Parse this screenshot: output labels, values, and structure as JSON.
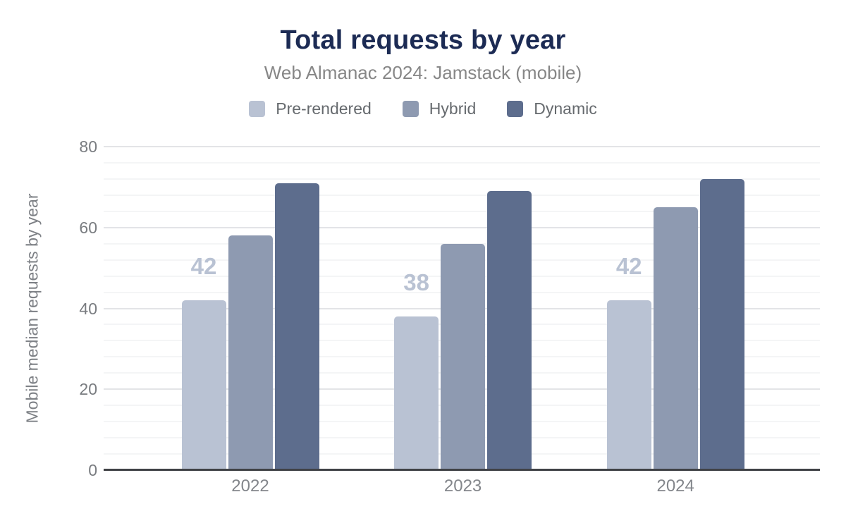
{
  "chart_data": {
    "type": "bar",
    "title": "Total requests by year",
    "subtitle": "Web Almanac 2024: Jamstack (mobile)",
    "ylabel": "Mobile median requests by year",
    "xlabel": "",
    "categories": [
      "2022",
      "2023",
      "2024"
    ],
    "series": [
      {
        "name": "Pre-rendered",
        "color": "#b9c2d3",
        "values": [
          42,
          38,
          42
        ],
        "value_labels": [
          "42",
          "38",
          "42"
        ]
      },
      {
        "name": "Hybrid",
        "color": "#8e9ab1",
        "values": [
          58,
          56,
          65
        ],
        "value_labels": null
      },
      {
        "name": "Dynamic",
        "color": "#5d6d8d",
        "values": [
          71,
          69,
          72
        ],
        "value_labels": null
      }
    ],
    "ylim": [
      0,
      80
    ],
    "yticks": [
      0,
      20,
      40,
      60,
      80
    ],
    "minor_gridline_step": 4,
    "grid": true,
    "legend_position": "top",
    "colors": {
      "title": "#1c2b54",
      "subtitle": "#878787",
      "axis_text": "#7e8186",
      "baseline": "#3f4145",
      "major_gridline": "#e3e4e7",
      "minor_gridline": "#f4f5f6"
    }
  }
}
